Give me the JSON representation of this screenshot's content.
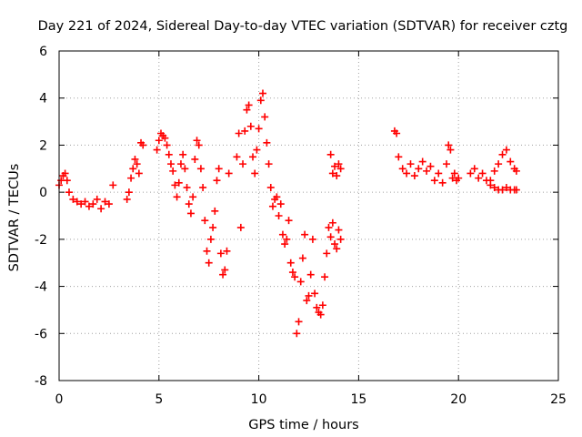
{
  "chart_data": {
    "type": "scatter",
    "title": "Day 221 of 2024, Sidereal Day-to-day VTEC variation (SDTVAR) for receiver cztg",
    "xlabel": "GPS time / hours",
    "ylabel": "SDTVAR / TECUs",
    "xlim": [
      0,
      25
    ],
    "ylim": [
      -8,
      6
    ],
    "xticks": [
      0,
      5,
      10,
      15,
      20,
      25
    ],
    "yticks": [
      -8,
      -6,
      -4,
      -2,
      0,
      2,
      4,
      6
    ],
    "grid": true,
    "marker": "+",
    "color": "#ff0000",
    "series": [
      {
        "name": "SDTVAR",
        "x": [
          0.0,
          0.1,
          0.2,
          0.3,
          0.4,
          0.5,
          0.7,
          0.9,
          1.1,
          1.3,
          1.5,
          1.7,
          1.9,
          2.1,
          2.3,
          2.5,
          2.7,
          3.4,
          3.5,
          3.6,
          3.7,
          3.8,
          3.9,
          4.0,
          4.1,
          4.2,
          4.9,
          5.0,
          5.1,
          5.2,
          5.3,
          5.4,
          5.5,
          5.6,
          5.7,
          5.8,
          5.9,
          6.0,
          6.1,
          6.2,
          6.3,
          6.4,
          6.5,
          6.6,
          6.7,
          6.8,
          6.9,
          7.0,
          7.1,
          7.2,
          7.3,
          7.4,
          7.5,
          7.6,
          7.7,
          7.8,
          7.9,
          8.0,
          8.1,
          8.2,
          8.3,
          8.4,
          8.5,
          8.9,
          9.0,
          9.1,
          9.2,
          9.3,
          9.4,
          9.5,
          9.6,
          9.7,
          9.8,
          9.9,
          10.0,
          10.1,
          10.2,
          10.3,
          10.4,
          10.5,
          10.6,
          10.7,
          10.8,
          10.9,
          11.0,
          11.1,
          11.2,
          11.3,
          11.4,
          11.5,
          11.6,
          11.7,
          11.8,
          11.9,
          12.0,
          12.1,
          12.2,
          12.3,
          12.4,
          12.5,
          12.6,
          12.7,
          12.8,
          12.9,
          13.0,
          13.1,
          13.2,
          13.3,
          13.4,
          13.5,
          13.6,
          13.7,
          13.8,
          13.9,
          14.0,
          14.1,
          13.6,
          13.7,
          13.8,
          13.9,
          14.0,
          14.1,
          16.8,
          16.9,
          17.0,
          17.2,
          17.4,
          17.6,
          17.8,
          18.0,
          18.2,
          18.4,
          18.6,
          18.8,
          19.0,
          19.2,
          19.4,
          19.5,
          19.6,
          19.7,
          19.8,
          19.9,
          20.0,
          20.6,
          20.8,
          21.0,
          21.2,
          21.4,
          21.6,
          21.8,
          22.0,
          22.2,
          22.4,
          22.6,
          22.8,
          22.9,
          21.6,
          21.8,
          22.0,
          22.2,
          22.4,
          22.6,
          22.8,
          22.9
        ],
        "y": [
          0.3,
          0.5,
          0.7,
          0.8,
          0.5,
          0.0,
          -0.3,
          -0.4,
          -0.5,
          -0.4,
          -0.6,
          -0.5,
          -0.3,
          -0.7,
          -0.4,
          -0.5,
          0.3,
          -0.3,
          0.0,
          0.6,
          1.0,
          1.4,
          1.2,
          0.8,
          2.1,
          2.0,
          1.8,
          2.2,
          2.5,
          2.4,
          2.3,
          2.0,
          1.6,
          1.2,
          0.9,
          0.3,
          -0.2,
          0.4,
          1.2,
          1.6,
          1.0,
          0.2,
          -0.5,
          -0.9,
          -0.2,
          1.4,
          2.2,
          2.0,
          1.0,
          0.2,
          -1.2,
          -2.5,
          -3.0,
          -2.0,
          -1.5,
          -0.8,
          0.5,
          1.0,
          -2.6,
          -3.5,
          -3.3,
          -2.5,
          0.8,
          1.5,
          2.5,
          -1.5,
          1.2,
          2.6,
          3.5,
          3.7,
          2.8,
          1.5,
          0.8,
          1.8,
          2.7,
          3.9,
          4.2,
          3.2,
          2.1,
          1.2,
          0.2,
          -0.6,
          -0.3,
          -0.2,
          -1.0,
          -0.5,
          -1.8,
          -2.2,
          -2.0,
          -1.2,
          -3.0,
          -3.4,
          -3.6,
          -6.0,
          -5.5,
          -3.8,
          -2.8,
          -1.8,
          -4.6,
          -4.4,
          -3.5,
          -2.0,
          -4.3,
          -4.9,
          -5.1,
          -5.2,
          -4.8,
          -3.6,
          -2.6,
          -1.5,
          -1.9,
          -1.3,
          -2.2,
          -2.4,
          -1.6,
          -2.0,
          1.6,
          0.8,
          1.1,
          0.7,
          1.2,
          1.0,
          2.6,
          2.5,
          1.5,
          1.0,
          0.8,
          1.2,
          0.7,
          1.0,
          1.3,
          0.9,
          1.1,
          0.5,
          0.8,
          0.4,
          1.2,
          2.0,
          1.8,
          0.6,
          0.8,
          0.5,
          0.6,
          0.8,
          1.0,
          0.6,
          0.8,
          0.5,
          0.3,
          0.2,
          0.1,
          0.1,
          0.2,
          0.1,
          0.1,
          0.1,
          0.5,
          0.9,
          1.2,
          1.6,
          1.8,
          1.3,
          1.0,
          0.9
        ]
      }
    ]
  }
}
